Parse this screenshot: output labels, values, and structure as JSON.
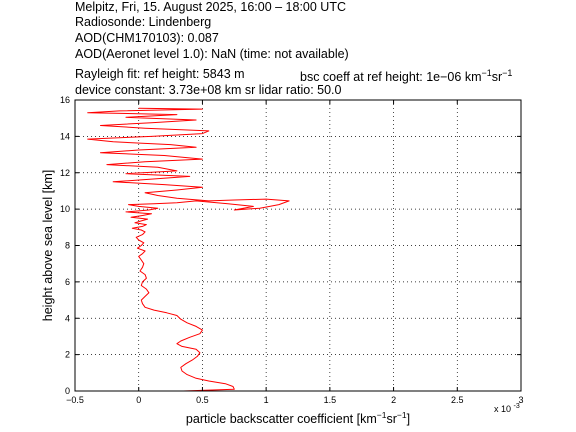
{
  "header": {
    "line1": "Melpitz, Fri, 15. August 2025, 16:00 – 18:00 UTC",
    "line2": "Radiosonde: Lindenberg",
    "line3": "AOD(CHM170103): 0.087",
    "line4": "AOD(Aeronet level 1.0): NaN   (time: not available)",
    "line5a": "Rayleigh fit:     ref height: 5843 m",
    "line5b_prefix": "bsc coeff at ref height: 1e−06 km",
    "line6": "device constant: 3.73e+08 km sr     lidar ratio: 50.0"
  },
  "colors": {
    "profile": "#ff0000",
    "axes": "#000000",
    "grid": "#000000"
  },
  "chart_data": {
    "type": "line",
    "title": "",
    "xlabel_prefix": "particle backscatter coefficient [km",
    "ylabel": "height above sea level [km]",
    "x_exponent_label": "x 10",
    "x_exponent": "-3",
    "xlim": [
      -0.5,
      3
    ],
    "ylim": [
      0,
      16
    ],
    "xticks": [
      -0.5,
      0,
      0.5,
      1,
      1.5,
      2,
      2.5,
      3
    ],
    "xtick_labels": [
      "−0.5",
      "0",
      "0.5",
      "1",
      "1.5",
      "2",
      "2.5",
      "3"
    ],
    "yticks": [
      0,
      2,
      4,
      6,
      8,
      10,
      12,
      14,
      16
    ],
    "ytick_labels": [
      "0",
      "2",
      "4",
      "6",
      "8",
      "10",
      "12",
      "14",
      "16"
    ],
    "grid": true,
    "grid_style": "dotted",
    "series": [
      {
        "values_x_units": "1e-3 km^-1 sr^-1",
        "x": [
          0.35,
          0.75,
          0.74,
          0.68,
          0.55,
          0.45,
          0.38,
          0.34,
          0.33,
          0.37,
          0.42,
          0.46,
          0.48,
          0.45,
          0.34,
          0.3,
          0.33,
          0.4,
          0.48,
          0.5,
          0.45,
          0.38,
          0.33,
          0.3,
          0.22,
          0.12,
          0.05,
          0.03,
          0.02,
          0.05,
          0.08,
          0.06,
          0.02,
          0.03,
          0.06,
          0.05,
          0.01,
          0.03,
          0.04,
          0.02,
          0.0,
          0.03,
          0.05,
          -0.01,
          0.02,
          0.04,
          0.0,
          -0.02,
          0.03,
          0.05,
          0.02,
          -0.05,
          0.03,
          0.06,
          -0.03,
          0.02,
          0.07,
          -0.06,
          0.03,
          0.1,
          -0.1,
          0.08,
          0.15,
          0.0,
          -0.08,
          0.12,
          0.3,
          0.45,
          0.7,
          0.9,
          0.75,
          0.95,
          1.1,
          1.18,
          1.0,
          0.75,
          0.55,
          0.3,
          0.15,
          0.05,
          0.3,
          0.5,
          0.2,
          -0.2,
          0.1,
          0.4,
          -0.1,
          0.3,
          0.15,
          -0.25,
          0.05,
          0.5,
          0.2,
          -0.3,
          0.0,
          0.45,
          0.25,
          -0.2,
          -0.4,
          0.1,
          0.5,
          0.55,
          0.05,
          -0.3,
          0.1,
          0.45,
          -0.1,
          0.3,
          -0.4,
          -0.15,
          0.5,
          0.0
        ],
        "y": [
          0.0,
          0.1,
          0.25,
          0.4,
          0.55,
          0.7,
          0.9,
          1.1,
          1.3,
          1.5,
          1.7,
          1.9,
          2.1,
          2.3,
          2.45,
          2.6,
          2.75,
          2.95,
          3.15,
          3.35,
          3.55,
          3.75,
          3.95,
          4.15,
          4.3,
          4.45,
          4.6,
          4.8,
          5.0,
          5.2,
          5.4,
          5.6,
          5.8,
          6.0,
          6.2,
          6.4,
          6.6,
          6.8,
          7.0,
          7.2,
          7.4,
          7.55,
          7.7,
          7.85,
          8.0,
          8.15,
          8.3,
          8.45,
          8.6,
          8.75,
          8.85,
          8.95,
          9.05,
          9.15,
          9.25,
          9.35,
          9.45,
          9.55,
          9.65,
          9.75,
          9.85,
          9.95,
          10.05,
          10.15,
          10.25,
          10.3,
          10.35,
          10.45,
          10.3,
          10.15,
          9.95,
          10.05,
          10.25,
          10.45,
          10.55,
          10.5,
          10.45,
          10.6,
          10.75,
          10.9,
          11.05,
          11.2,
          11.35,
          11.5,
          11.65,
          11.8,
          11.95,
          12.1,
          12.3,
          12.45,
          12.6,
          12.75,
          12.95,
          13.1,
          13.25,
          13.4,
          13.55,
          13.7,
          13.85,
          14.0,
          14.15,
          14.3,
          14.45,
          14.6,
          14.75,
          14.9,
          15.05,
          15.2,
          15.3,
          15.4,
          15.5,
          15.55
        ]
      }
    ]
  }
}
